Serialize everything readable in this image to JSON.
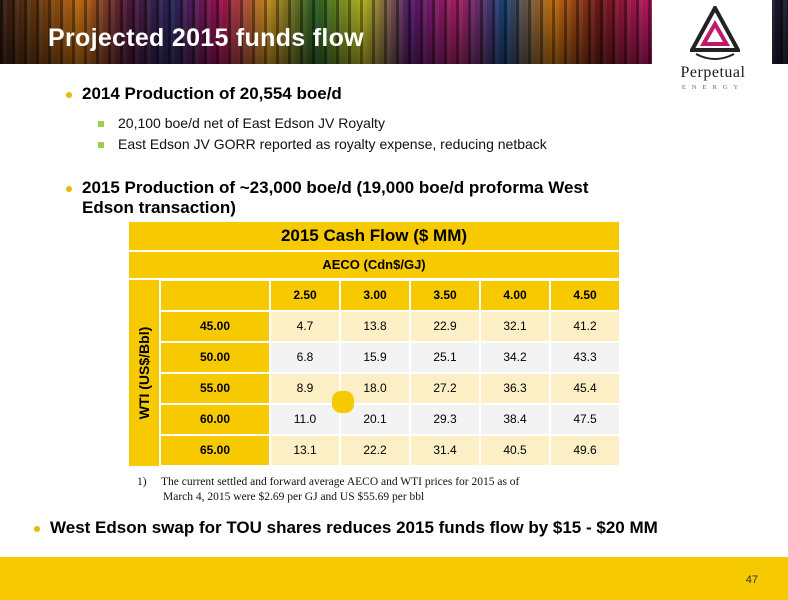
{
  "header": {
    "title": "Projected 2015 funds flow"
  },
  "logo": {
    "name": "Perpetual",
    "sub": "ENERGY"
  },
  "bullets": {
    "b1": "2014 Production of 20,554 boe/d",
    "b1_sub": [
      "20,100 boe/d net of East Edson JV Royalty",
      "East Edson JV GORR reported as royalty expense, reducing netback"
    ],
    "b2_line1": "2015 Production of ~23,000 boe/d (19,000 boe/d proforma West",
    "b2_line2": "Edson transaction)"
  },
  "table": {
    "title": "2015 Cash Flow ($ MM)",
    "col_group": "AECO (Cdn$/GJ)",
    "row_group": "WTI (US$/Bbl)",
    "columns": [
      "2.50",
      "3.00",
      "3.50",
      "4.00",
      "4.50"
    ],
    "rows": [
      {
        "label": "45.00",
        "values": [
          "4.7",
          "13.8",
          "22.9",
          "32.1",
          "41.2"
        ]
      },
      {
        "label": "50.00",
        "values": [
          "6.8",
          "15.9",
          "25.1",
          "34.2",
          "43.3"
        ]
      },
      {
        "label": "55.00",
        "values": [
          "8.9",
          "18.0",
          "27.2",
          "36.3",
          "45.4"
        ]
      },
      {
        "label": "60.00",
        "values": [
          "11.0",
          "20.1",
          "29.3",
          "38.4",
          "47.5"
        ]
      },
      {
        "label": "65.00",
        "values": [
          "13.1",
          "22.2",
          "31.4",
          "40.5",
          "49.6"
        ]
      }
    ]
  },
  "footnote": {
    "num": "1)",
    "line1": "The current settled and forward average AECO and WTI prices for 2015 as of",
    "line2": "March 4, 2015 were $2.69 per GJ and US $55.69 per bbl"
  },
  "bottom_bullet": "West Edson swap for TOU shares reduces 2015 funds flow by $15 - $20 MM",
  "page_number": "47"
}
